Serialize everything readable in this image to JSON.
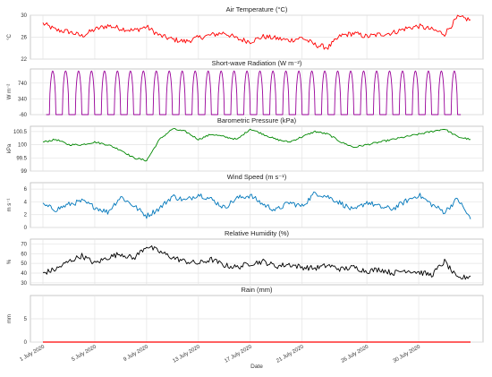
{
  "chart_data": {
    "type": "line",
    "x_axis": {
      "label": "Date",
      "range": [
        "2020-07-01",
        "2020-08-03"
      ],
      "ticks": [
        {
          "date": "2020-07-01",
          "label": "1 July 2020"
        },
        {
          "date": "2020-07-05",
          "label": "5 July 2020"
        },
        {
          "date": "2020-07-09",
          "label": "9 July 2020"
        },
        {
          "date": "2020-07-13",
          "label": "13 July 2020"
        },
        {
          "date": "2020-07-17",
          "label": "17 July 2020"
        },
        {
          "date": "2020-07-21",
          "label": "21 July 2020"
        },
        {
          "date": "2020-07-26",
          "label": "26 July 2020"
        },
        {
          "date": "2020-07-30",
          "label": "30 July 2020"
        }
      ]
    },
    "grid": true,
    "panels": [
      {
        "id": "air-temperature",
        "title": "Air Temperature (°C)",
        "ylabel": "°C",
        "color": "#ff0000",
        "ylim": [
          22,
          30
        ],
        "yticks": [
          22,
          26,
          30
        ],
        "series": [
          {
            "date": "2020-07-01",
            "value": 28.5
          },
          {
            "date": "2020-07-02",
            "value": 27.3
          },
          {
            "date": "2020-07-03",
            "value": 27.0
          },
          {
            "date": "2020-07-04",
            "value": 26.2
          },
          {
            "date": "2020-07-05",
            "value": 27.4
          },
          {
            "date": "2020-07-06",
            "value": 28.1
          },
          {
            "date": "2020-07-07",
            "value": 27.6
          },
          {
            "date": "2020-07-08",
            "value": 27.2
          },
          {
            "date": "2020-07-09",
            "value": 27.9
          },
          {
            "date": "2020-07-10",
            "value": 26.3
          },
          {
            "date": "2020-07-11",
            "value": 25.6
          },
          {
            "date": "2020-07-12",
            "value": 25.2
          },
          {
            "date": "2020-07-13",
            "value": 25.9
          },
          {
            "date": "2020-07-14",
            "value": 26.4
          },
          {
            "date": "2020-07-15",
            "value": 26.8
          },
          {
            "date": "2020-07-16",
            "value": 25.7
          },
          {
            "date": "2020-07-17",
            "value": 25.2
          },
          {
            "date": "2020-07-18",
            "value": 26.1
          },
          {
            "date": "2020-07-19",
            "value": 25.8
          },
          {
            "date": "2020-07-20",
            "value": 25.4
          },
          {
            "date": "2020-07-21",
            "value": 25.9
          },
          {
            "date": "2020-07-22",
            "value": 24.6
          },
          {
            "date": "2020-07-23",
            "value": 24.1
          },
          {
            "date": "2020-07-24",
            "value": 26.3
          },
          {
            "date": "2020-07-25",
            "value": 26.7
          },
          {
            "date": "2020-07-26",
            "value": 26.1
          },
          {
            "date": "2020-07-27",
            "value": 26.5
          },
          {
            "date": "2020-07-28",
            "value": 26.8
          },
          {
            "date": "2020-07-29",
            "value": 27.6
          },
          {
            "date": "2020-07-30",
            "value": 28.0
          },
          {
            "date": "2020-07-31",
            "value": 27.4
          },
          {
            "date": "2020-08-01",
            "value": 26.6
          },
          {
            "date": "2020-08-02",
            "value": 29.6
          },
          {
            "date": "2020-08-03",
            "value": 29.2
          }
        ]
      },
      {
        "id": "shortwave-radiation",
        "title": "Short-wave Radiation (W m⁻²)",
        "ylabel": "W m⁻²",
        "color": "#990099",
        "ylim": [
          -60,
          1100
        ],
        "yticks": [
          -60,
          340,
          740
        ],
        "pattern": "diurnal",
        "daily_peak": 1050,
        "night_value": -60,
        "days": 32
      },
      {
        "id": "barometric-pressure",
        "title": "Barometric Pressure (kPa)",
        "ylabel": "kPa",
        "color": "#008800",
        "ylim": [
          99.0,
          100.7
        ],
        "yticks": [
          99.0,
          99.5,
          100.0,
          100.5
        ],
        "series": [
          {
            "date": "2020-07-01",
            "value": 100.1
          },
          {
            "date": "2020-07-02",
            "value": 100.2
          },
          {
            "date": "2020-07-03",
            "value": 100.0
          },
          {
            "date": "2020-07-04",
            "value": 100.0
          },
          {
            "date": "2020-07-05",
            "value": 100.1
          },
          {
            "date": "2020-07-06",
            "value": 100.0
          },
          {
            "date": "2020-07-07",
            "value": 99.8
          },
          {
            "date": "2020-07-08",
            "value": 99.5
          },
          {
            "date": "2020-07-09",
            "value": 99.4
          },
          {
            "date": "2020-07-10",
            "value": 100.2
          },
          {
            "date": "2020-07-11",
            "value": 100.6
          },
          {
            "date": "2020-07-12",
            "value": 100.5
          },
          {
            "date": "2020-07-13",
            "value": 100.2
          },
          {
            "date": "2020-07-14",
            "value": 100.4
          },
          {
            "date": "2020-07-15",
            "value": 100.3
          },
          {
            "date": "2020-07-16",
            "value": 100.2
          },
          {
            "date": "2020-07-17",
            "value": 100.6
          },
          {
            "date": "2020-07-18",
            "value": 100.4
          },
          {
            "date": "2020-07-19",
            "value": 100.2
          },
          {
            "date": "2020-07-20",
            "value": 100.1
          },
          {
            "date": "2020-07-21",
            "value": 100.3
          },
          {
            "date": "2020-07-22",
            "value": 100.5
          },
          {
            "date": "2020-07-23",
            "value": 100.4
          },
          {
            "date": "2020-07-24",
            "value": 100.1
          },
          {
            "date": "2020-07-25",
            "value": 99.9
          },
          {
            "date": "2020-07-26",
            "value": 100.0
          },
          {
            "date": "2020-07-27",
            "value": 100.1
          },
          {
            "date": "2020-07-28",
            "value": 100.2
          },
          {
            "date": "2020-07-29",
            "value": 100.3
          },
          {
            "date": "2020-07-30",
            "value": 100.4
          },
          {
            "date": "2020-07-31",
            "value": 100.5
          },
          {
            "date": "2020-08-01",
            "value": 100.6
          },
          {
            "date": "2020-08-02",
            "value": 100.3
          },
          {
            "date": "2020-08-03",
            "value": 100.2
          }
        ]
      },
      {
        "id": "wind-speed",
        "title": "Wind Speed (m s⁻¹)",
        "ylabel": "m s⁻¹",
        "color": "#0077bb",
        "ylim": [
          0,
          7
        ],
        "yticks": [
          0,
          2,
          4,
          6
        ],
        "series": [
          {
            "date": "2020-07-01",
            "value": 3.5
          },
          {
            "date": "2020-07-02",
            "value": 2.8
          },
          {
            "date": "2020-07-03",
            "value": 3.6
          },
          {
            "date": "2020-07-04",
            "value": 4.1
          },
          {
            "date": "2020-07-05",
            "value": 3.2
          },
          {
            "date": "2020-07-06",
            "value": 2.4
          },
          {
            "date": "2020-07-07",
            "value": 4.8
          },
          {
            "date": "2020-07-08",
            "value": 3.4
          },
          {
            "date": "2020-07-09",
            "value": 1.8
          },
          {
            "date": "2020-07-10",
            "value": 3.0
          },
          {
            "date": "2020-07-11",
            "value": 4.9
          },
          {
            "date": "2020-07-12",
            "value": 4.2
          },
          {
            "date": "2020-07-13",
            "value": 5.2
          },
          {
            "date": "2020-07-14",
            "value": 4.4
          },
          {
            "date": "2020-07-15",
            "value": 3.1
          },
          {
            "date": "2020-07-16",
            "value": 4.6
          },
          {
            "date": "2020-07-17",
            "value": 5.0
          },
          {
            "date": "2020-07-18",
            "value": 3.6
          },
          {
            "date": "2020-07-19",
            "value": 2.7
          },
          {
            "date": "2020-07-20",
            "value": 3.9
          },
          {
            "date": "2020-07-21",
            "value": 3.3
          },
          {
            "date": "2020-07-22",
            "value": 5.4
          },
          {
            "date": "2020-07-23",
            "value": 4.8
          },
          {
            "date": "2020-07-24",
            "value": 3.8
          },
          {
            "date": "2020-07-25",
            "value": 2.6
          },
          {
            "date": "2020-07-26",
            "value": 4.0
          },
          {
            "date": "2020-07-27",
            "value": 3.2
          },
          {
            "date": "2020-07-28",
            "value": 2.9
          },
          {
            "date": "2020-07-29",
            "value": 4.1
          },
          {
            "date": "2020-07-30",
            "value": 5.1
          },
          {
            "date": "2020-07-31",
            "value": 3.6
          },
          {
            "date": "2020-08-01",
            "value": 2.4
          },
          {
            "date": "2020-08-02",
            "value": 4.5
          },
          {
            "date": "2020-08-03",
            "value": 1.3
          }
        ]
      },
      {
        "id": "relative-humidity",
        "title": "Relative Humidity (%)",
        "ylabel": "%",
        "color": "#000000",
        "ylim": [
          28,
          75
        ],
        "yticks": [
          30,
          40,
          50,
          60,
          70
        ],
        "series": [
          {
            "date": "2020-07-01",
            "value": 40
          },
          {
            "date": "2020-07-02",
            "value": 44
          },
          {
            "date": "2020-07-03",
            "value": 52
          },
          {
            "date": "2020-07-04",
            "value": 58
          },
          {
            "date": "2020-07-05",
            "value": 50
          },
          {
            "date": "2020-07-06",
            "value": 56
          },
          {
            "date": "2020-07-07",
            "value": 60
          },
          {
            "date": "2020-07-08",
            "value": 55
          },
          {
            "date": "2020-07-09",
            "value": 68
          },
          {
            "date": "2020-07-10",
            "value": 62
          },
          {
            "date": "2020-07-11",
            "value": 56
          },
          {
            "date": "2020-07-12",
            "value": 52
          },
          {
            "date": "2020-07-13",
            "value": 50
          },
          {
            "date": "2020-07-14",
            "value": 54
          },
          {
            "date": "2020-07-15",
            "value": 48
          },
          {
            "date": "2020-07-16",
            "value": 46
          },
          {
            "date": "2020-07-17",
            "value": 50
          },
          {
            "date": "2020-07-18",
            "value": 52
          },
          {
            "date": "2020-07-19",
            "value": 47
          },
          {
            "date": "2020-07-20",
            "value": 49
          },
          {
            "date": "2020-07-21",
            "value": 46
          },
          {
            "date": "2020-07-22",
            "value": 45
          },
          {
            "date": "2020-07-23",
            "value": 48
          },
          {
            "date": "2020-07-24",
            "value": 44
          },
          {
            "date": "2020-07-25",
            "value": 46
          },
          {
            "date": "2020-07-26",
            "value": 42
          },
          {
            "date": "2020-07-27",
            "value": 44
          },
          {
            "date": "2020-07-28",
            "value": 40
          },
          {
            "date": "2020-07-29",
            "value": 43
          },
          {
            "date": "2020-07-30",
            "value": 41
          },
          {
            "date": "2020-07-31",
            "value": 38
          },
          {
            "date": "2020-08-01",
            "value": 52
          },
          {
            "date": "2020-08-02",
            "value": 34
          },
          {
            "date": "2020-08-03",
            "value": 37
          }
        ]
      },
      {
        "id": "rain",
        "title": "Rain (mm)",
        "ylabel": "mm",
        "color": "#ff0000",
        "ylim": [
          0,
          10
        ],
        "yticks": [
          0,
          5
        ],
        "series": [
          {
            "date": "2020-07-01",
            "value": 0
          },
          {
            "date": "2020-08-03",
            "value": 0
          }
        ]
      }
    ]
  }
}
